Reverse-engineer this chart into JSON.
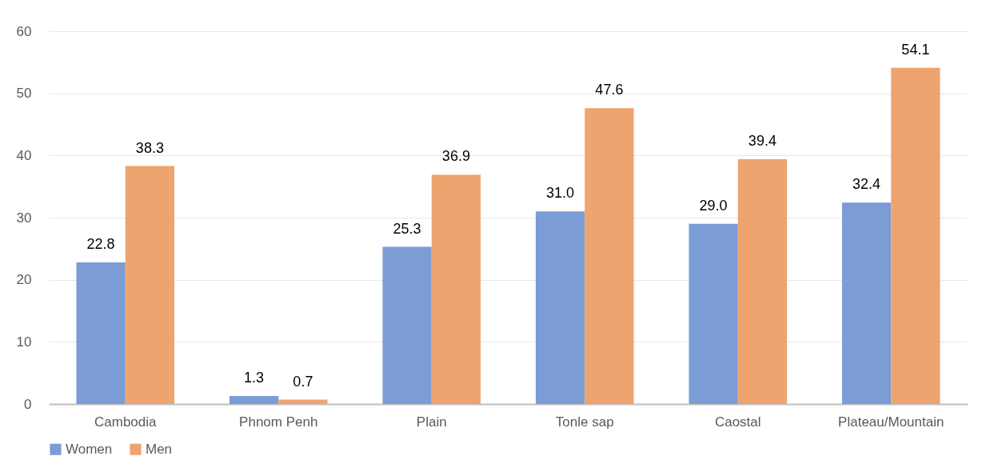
{
  "chart_data": {
    "type": "bar",
    "categories": [
      "Cambodia",
      "Phnom Penh",
      "Plain",
      "Tonle sap",
      "Caostal",
      "Plateau/Mountain"
    ],
    "series": [
      {
        "name": "Women",
        "color": "#7b9cd4",
        "values": [
          22.8,
          1.3,
          25.3,
          31.0,
          29.0,
          32.4
        ],
        "value_labels": [
          "22.8",
          "1.3",
          "25.3",
          "31.0",
          "29.0",
          "32.4"
        ]
      },
      {
        "name": "Men",
        "color": "#eea46e",
        "values": [
          38.3,
          0.7,
          36.9,
          47.6,
          39.4,
          54.1
        ],
        "value_labels": [
          "38.3",
          "0.7",
          "36.9",
          "47.6",
          "39.4",
          "54.1"
        ]
      }
    ],
    "ylim": [
      0,
      60
    ],
    "yticks": [
      0,
      10,
      20,
      30,
      40,
      50,
      60
    ],
    "grid": "y",
    "legend": "bottom"
  }
}
